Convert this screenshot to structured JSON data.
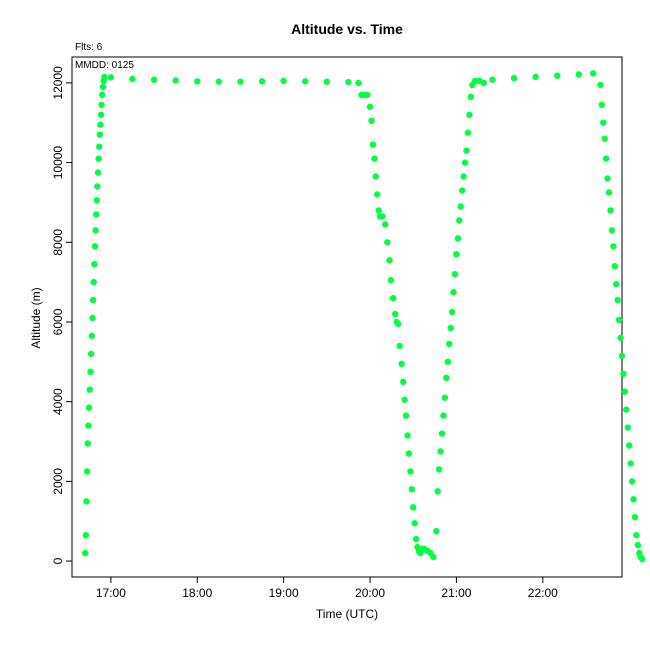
{
  "chart_data": {
    "type": "scatter",
    "title": "Altitude  vs. Time",
    "xlabel": "Time (UTC)",
    "ylabel": "Altitude (m)",
    "annotations": [
      "Flts: 6",
      "MMDD: 0125"
    ],
    "xlim": [
      "16:33",
      "22:55"
    ],
    "ylim": [
      -400,
      12650
    ],
    "xticks": [
      "17:00",
      "18:00",
      "19:00",
      "20:00",
      "21:00",
      "22:00"
    ],
    "yticks": [
      0,
      2000,
      4000,
      6000,
      8000,
      10000,
      12000
    ],
    "grid": false,
    "marker_color": "#00ff44",
    "series": [
      {
        "points": [
          [
            "16:42:10",
            200
          ],
          [
            "16:42:35",
            650
          ],
          [
            "16:43:05",
            1500
          ],
          [
            "16:43:30",
            2250
          ],
          [
            "16:44:00",
            2950
          ],
          [
            "16:44:25",
            3400
          ],
          [
            "16:44:50",
            3850
          ],
          [
            "16:45:20",
            4300
          ],
          [
            "16:45:50",
            4750
          ],
          [
            "16:46:15",
            5200
          ],
          [
            "16:46:45",
            5650
          ],
          [
            "16:47:15",
            6100
          ],
          [
            "16:47:40",
            6550
          ],
          [
            "16:48:05",
            7000
          ],
          [
            "16:48:30",
            7450
          ],
          [
            "16:49:00",
            7900
          ],
          [
            "16:49:25",
            8300
          ],
          [
            "16:49:50",
            8700
          ],
          [
            "16:50:15",
            9050
          ],
          [
            "16:50:40",
            9400
          ],
          [
            "16:51:05",
            9750
          ],
          [
            "16:51:30",
            10100
          ],
          [
            "16:51:55",
            10400
          ],
          [
            "16:52:20",
            10700
          ],
          [
            "16:52:45",
            10950
          ],
          [
            "16:53:10",
            11200
          ],
          [
            "16:53:35",
            11450
          ],
          [
            "16:54:00",
            11700
          ],
          [
            "16:54:30",
            11900
          ],
          [
            "16:55:00",
            12050
          ],
          [
            "16:55:30",
            12150
          ],
          [
            "17:00:00",
            12140
          ],
          [
            "17:15:00",
            12100
          ],
          [
            "17:30:00",
            12080
          ],
          [
            "17:45:00",
            12060
          ],
          [
            "18:00:00",
            12040
          ],
          [
            "18:15:00",
            12030
          ],
          [
            "18:30:00",
            12030
          ],
          [
            "18:45:00",
            12040
          ],
          [
            "19:00:00",
            12050
          ],
          [
            "19:15:00",
            12040
          ],
          [
            "19:30:00",
            12030
          ],
          [
            "19:45:00",
            12020
          ],
          [
            "19:52:00",
            12000
          ],
          [
            "19:54:00",
            11700
          ],
          [
            "19:56:00",
            11700
          ],
          [
            "19:58:00",
            11700
          ],
          [
            "20:00:00",
            11400
          ],
          [
            "20:01:00",
            11050
          ],
          [
            "20:02:00",
            10450
          ],
          [
            "20:03:00",
            10100
          ],
          [
            "20:04:00",
            9650
          ],
          [
            "20:05:00",
            9200
          ],
          [
            "20:06:00",
            8800
          ],
          [
            "20:07:00",
            8650
          ],
          [
            "20:08:30",
            8650
          ],
          [
            "20:10:30",
            8450
          ],
          [
            "20:12:00",
            8000
          ],
          [
            "20:13:30",
            7550
          ],
          [
            "20:14:30",
            7050
          ],
          [
            "20:16:00",
            6600
          ],
          [
            "20:17:30",
            6200
          ],
          [
            "20:18:30",
            6000
          ],
          [
            "20:19:30",
            5950
          ],
          [
            "20:20:30",
            5400
          ],
          [
            "20:22:00",
            4950
          ],
          [
            "20:23:00",
            4500
          ],
          [
            "20:24:00",
            4050
          ],
          [
            "20:25:00",
            3650
          ],
          [
            "20:26:00",
            3150
          ],
          [
            "20:27:00",
            2700
          ],
          [
            "20:28:00",
            2250
          ],
          [
            "20:29:00",
            1800
          ],
          [
            "20:30:00",
            1350
          ],
          [
            "20:31:00",
            950
          ],
          [
            "20:32:00",
            550
          ],
          [
            "20:33:00",
            350
          ],
          [
            "20:34:00",
            250
          ],
          [
            "20:35:00",
            200
          ],
          [
            "20:36:00",
            300
          ],
          [
            "20:38:00",
            300
          ],
          [
            "20:40:00",
            250
          ],
          [
            "20:42:00",
            200
          ],
          [
            "20:44:00",
            100
          ],
          [
            "20:46:00",
            750
          ],
          [
            "20:47:00",
            1750
          ],
          [
            "20:48:00",
            2300
          ],
          [
            "20:49:00",
            2750
          ],
          [
            "20:50:00",
            3200
          ],
          [
            "20:51:00",
            3650
          ],
          [
            "20:52:00",
            4100
          ],
          [
            "20:53:00",
            4600
          ],
          [
            "20:54:00",
            5000
          ],
          [
            "20:55:00",
            5450
          ],
          [
            "20:56:00",
            5850
          ],
          [
            "20:57:00",
            6250
          ],
          [
            "20:58:00",
            6750
          ],
          [
            "20:59:00",
            7200
          ],
          [
            "21:00:00",
            7700
          ],
          [
            "21:01:00",
            8100
          ],
          [
            "21:02:00",
            8550
          ],
          [
            "21:03:00",
            8900
          ],
          [
            "21:04:00",
            9300
          ],
          [
            "21:05:00",
            9650
          ],
          [
            "21:06:00",
            10000
          ],
          [
            "21:07:00",
            10300
          ],
          [
            "21:08:00",
            10750
          ],
          [
            "21:09:00",
            11200
          ],
          [
            "21:10:00",
            11650
          ],
          [
            "21:11:00",
            11950
          ],
          [
            "21:13:00",
            12050
          ],
          [
            "21:16:00",
            12050
          ],
          [
            "21:19:00",
            12000
          ],
          [
            "21:25:00",
            12080
          ],
          [
            "21:40:00",
            12120
          ],
          [
            "21:55:00",
            12150
          ],
          [
            "22:10:00",
            12180
          ],
          [
            "22:25:00",
            12210
          ],
          [
            "22:35:00",
            12240
          ],
          [
            "22:40:00",
            11950
          ],
          [
            "22:41:00",
            11450
          ],
          [
            "22:42:00",
            11000
          ],
          [
            "22:43:00",
            10600
          ],
          [
            "22:44:00",
            10100
          ],
          [
            "22:45:00",
            9600
          ],
          [
            "22:46:00",
            9250
          ],
          [
            "22:47:00",
            8800
          ],
          [
            "22:48:00",
            8300
          ],
          [
            "22:49:00",
            7900
          ],
          [
            "22:50:00",
            7400
          ],
          [
            "22:51:00",
            6950
          ],
          [
            "22:52:00",
            6550
          ],
          [
            "22:53:00",
            6050
          ],
          [
            "22:54:00",
            5600
          ],
          [
            "22:55:00",
            5150
          ],
          [
            "22:56:00",
            4700
          ],
          [
            "22:57:00",
            4250
          ],
          [
            "22:58:00",
            3800
          ],
          [
            "22:59:00",
            3350
          ],
          [
            "23:00:00",
            2900
          ],
          [
            "23:01:00",
            2450
          ],
          [
            "23:02:00",
            2000
          ],
          [
            "23:03:00",
            1550
          ],
          [
            "23:04:00",
            1100
          ],
          [
            "23:05:00",
            650
          ],
          [
            "23:06:00",
            400
          ],
          [
            "23:07:00",
            200
          ],
          [
            "23:08:00",
            100
          ],
          [
            "23:09:00",
            50
          ]
        ]
      }
    ]
  }
}
